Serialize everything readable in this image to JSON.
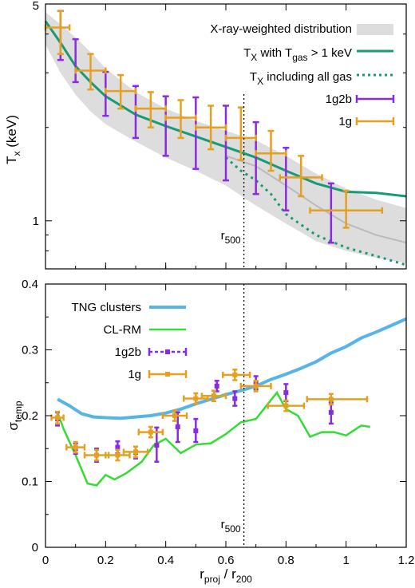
{
  "chart_data": [
    {
      "type": "line",
      "panel": "top",
      "ylabel_main": "T",
      "ylabel_sub": "x",
      "ylabel_unit": "(keV)",
      "yscale": "log",
      "xlim": [
        0,
        1.2
      ],
      "ylim": [
        0.7,
        5
      ],
      "y_tick_labels": [
        {
          "value": 1,
          "label": "1"
        },
        {
          "value": 5,
          "label": "5"
        }
      ],
      "r500": 0.66,
      "r500_label_main": "r",
      "r500_label_sub": "500",
      "legend": {
        "band": "X-ray-weighted distribution",
        "hot_main": "T",
        "hot_sub1": "X",
        "hot_mid": " with T",
        "hot_sub2": "gas",
        "hot_end": " > 1 keV",
        "all_main": "T",
        "all_sub": "X",
        "all_end": " including all gas",
        "s1g2b": "1g2b",
        "s1g": "1g"
      },
      "band": {
        "x": [
          0.0,
          0.05,
          0.1,
          0.15,
          0.2,
          0.3,
          0.4,
          0.5,
          0.6,
          0.7,
          0.8,
          0.9,
          1.0,
          1.1,
          1.2
        ],
        "lower": [
          3.7,
          3.0,
          2.55,
          2.25,
          2.05,
          1.8,
          1.6,
          1.45,
          1.3,
          1.12,
          0.98,
          0.86,
          0.8,
          0.76,
          0.73
        ],
        "upper": [
          4.7,
          4.3,
          3.9,
          3.5,
          3.1,
          2.6,
          2.3,
          2.1,
          1.95,
          1.82,
          1.62,
          1.42,
          1.27,
          1.17,
          1.1
        ]
      },
      "series": [
        {
          "name": "hot",
          "color": "#1a9a74",
          "style": "solid",
          "x": [
            0.0,
            0.05,
            0.1,
            0.15,
            0.2,
            0.3,
            0.4,
            0.5,
            0.6,
            0.7,
            0.8,
            0.9,
            1.0,
            1.1,
            1.2
          ],
          "y": [
            4.4,
            3.75,
            3.15,
            2.8,
            2.52,
            2.2,
            2.02,
            1.87,
            1.73,
            1.6,
            1.45,
            1.32,
            1.24,
            1.23,
            1.2
          ]
        },
        {
          "name": "all",
          "color": "#1a9a74",
          "style": "dotted",
          "x": [
            0.6,
            0.65,
            0.7,
            0.75,
            0.8,
            0.9,
            1.0,
            1.1,
            1.2
          ],
          "y": [
            1.6,
            1.45,
            1.35,
            1.22,
            1.05,
            0.9,
            0.82,
            0.77,
            0.72
          ]
        },
        {
          "name": "median",
          "color": "#bbbbbb",
          "style": "solid",
          "x": [
            0.6,
            0.7,
            0.8,
            0.9,
            1.0,
            1.1,
            1.2
          ],
          "y": [
            1.62,
            1.5,
            1.3,
            1.12,
            0.98,
            0.9,
            0.85
          ]
        }
      ],
      "points_1g2b": [
        {
          "x": 0.05,
          "y": 4.1,
          "ylo": 3.3,
          "yhi": 4.75
        },
        {
          "x": 0.1,
          "y": 3.3,
          "ylo": 2.8,
          "yhi": 3.85
        },
        {
          "x": 0.2,
          "y": 2.6,
          "ylo": 2.18,
          "yhi": 3.02
        },
        {
          "x": 0.3,
          "y": 2.3,
          "ylo": 1.85,
          "yhi": 2.72
        },
        {
          "x": 0.4,
          "y": 2.2,
          "ylo": 1.62,
          "yhi": 2.52
        },
        {
          "x": 0.5,
          "y": 1.95,
          "ylo": 1.47,
          "yhi": 2.5
        },
        {
          "x": 0.6,
          "y": 1.75,
          "ylo": 1.35,
          "yhi": 2.35
        },
        {
          "x": 0.7,
          "y": 1.55,
          "ylo": 1.22,
          "yhi": 2.08
        },
        {
          "x": 0.8,
          "y": 1.35,
          "ylo": 1.08,
          "yhi": 1.72
        },
        {
          "x": 0.95,
          "y": 1.05,
          "ylo": 0.85,
          "yhi": 1.32
        }
      ],
      "points_1g": [
        {
          "x": 0.05,
          "y": 4.2,
          "ylo": 3.45,
          "yhi": 4.75,
          "xlo": 0.0,
          "xhi": 0.08
        },
        {
          "x": 0.15,
          "y": 3.05,
          "ylo": 2.65,
          "yhi": 3.45,
          "xlo": 0.1,
          "xhi": 0.2
        },
        {
          "x": 0.25,
          "y": 2.62,
          "ylo": 2.3,
          "yhi": 2.95,
          "xlo": 0.2,
          "xhi": 0.3
        },
        {
          "x": 0.35,
          "y": 2.3,
          "ylo": 2.0,
          "yhi": 2.6,
          "xlo": 0.3,
          "xhi": 0.4
        },
        {
          "x": 0.45,
          "y": 2.15,
          "ylo": 1.85,
          "yhi": 2.45,
          "xlo": 0.4,
          "xhi": 0.5
        },
        {
          "x": 0.55,
          "y": 2.0,
          "ylo": 1.7,
          "yhi": 2.35,
          "xlo": 0.5,
          "xhi": 0.6
        },
        {
          "x": 0.65,
          "y": 1.85,
          "ylo": 1.57,
          "yhi": 2.32,
          "xlo": 0.6,
          "xhi": 0.7
        },
        {
          "x": 0.75,
          "y": 1.65,
          "ylo": 1.45,
          "yhi": 1.95,
          "xlo": 0.7,
          "xhi": 0.8
        },
        {
          "x": 0.85,
          "y": 1.38,
          "ylo": 1.2,
          "yhi": 1.62,
          "xlo": 0.78,
          "xhi": 0.92
        },
        {
          "x": 1.0,
          "y": 1.08,
          "ylo": 0.95,
          "yhi": 1.25,
          "xlo": 0.88,
          "xhi": 1.12
        }
      ]
    },
    {
      "type": "line",
      "panel": "bottom",
      "ylabel_main": "σ",
      "ylabel_sub": "temp",
      "xlabel_a": "r",
      "xlabel_a_sub": "proj",
      "xlabel_mid": " / r",
      "xlabel_b_sub": "200",
      "xlim": [
        0,
        1.2
      ],
      "ylim": [
        0,
        0.4
      ],
      "x_ticks": [
        0,
        0.2,
        0.4,
        0.6,
        0.8,
        1,
        1.2
      ],
      "x_tick_labels": [
        "0",
        "0.2",
        "0.4",
        "0.6",
        "0.8",
        "1",
        "1.2"
      ],
      "y_ticks": [
        0,
        0.1,
        0.2,
        0.3,
        0.4
      ],
      "y_tick_labels": [
        "0",
        "0.1",
        "0.2",
        "0.3",
        "0.4"
      ],
      "r500": 0.66,
      "r500_label_main": "r",
      "r500_label_sub": "500",
      "legend": {
        "tng": "TNG clusters",
        "clrm": "CL-RM",
        "s1g2b": "1g2b",
        "s1g": "1g"
      },
      "series": [
        {
          "name": "TNG clusters",
          "color": "#56b4e9",
          "x": [
            0.04,
            0.08,
            0.12,
            0.16,
            0.2,
            0.25,
            0.3,
            0.35,
            0.4,
            0.45,
            0.5,
            0.55,
            0.6,
            0.65,
            0.7,
            0.75,
            0.8,
            0.85,
            0.9,
            0.95,
            1.0,
            1.05,
            1.1,
            1.15,
            1.2
          ],
          "y": [
            0.225,
            0.215,
            0.203,
            0.198,
            0.197,
            0.196,
            0.198,
            0.2,
            0.204,
            0.21,
            0.218,
            0.225,
            0.232,
            0.238,
            0.245,
            0.255,
            0.263,
            0.272,
            0.282,
            0.295,
            0.305,
            0.318,
            0.327,
            0.337,
            0.347
          ]
        },
        {
          "name": "CL-RM",
          "color": "#33dd33",
          "x": [
            0.04,
            0.06,
            0.1,
            0.14,
            0.17,
            0.2,
            0.23,
            0.27,
            0.32,
            0.36,
            0.4,
            0.45,
            0.5,
            0.55,
            0.6,
            0.65,
            0.7,
            0.74,
            0.77,
            0.8,
            0.84,
            0.88,
            0.92,
            0.96,
            1.0,
            1.05,
            1.08
          ],
          "y": [
            0.205,
            0.18,
            0.14,
            0.097,
            0.094,
            0.11,
            0.103,
            0.113,
            0.13,
            0.155,
            0.165,
            0.143,
            0.156,
            0.158,
            0.172,
            0.19,
            0.195,
            0.218,
            0.235,
            0.21,
            0.2,
            0.168,
            0.175,
            0.175,
            0.17,
            0.185,
            0.183
          ]
        }
      ],
      "points_1g2b": [
        {
          "x": 0.04,
          "y": 0.195,
          "ylo": 0.185,
          "yhi": 0.205
        },
        {
          "x": 0.1,
          "y": 0.15,
          "ylo": 0.142,
          "yhi": 0.158
        },
        {
          "x": 0.17,
          "y": 0.14,
          "ylo": 0.13,
          "yhi": 0.15
        },
        {
          "x": 0.24,
          "y": 0.152,
          "ylo": 0.143,
          "yhi": 0.161
        },
        {
          "x": 0.3,
          "y": 0.144,
          "ylo": 0.135,
          "yhi": 0.153
        },
        {
          "x": 0.37,
          "y": 0.155,
          "ylo": 0.13,
          "yhi": 0.182
        },
        {
          "x": 0.44,
          "y": 0.183,
          "ylo": 0.16,
          "yhi": 0.205
        },
        {
          "x": 0.5,
          "y": 0.177,
          "ylo": 0.16,
          "yhi": 0.195
        },
        {
          "x": 0.57,
          "y": 0.245,
          "ylo": 0.237,
          "yhi": 0.253
        },
        {
          "x": 0.63,
          "y": 0.226,
          "ylo": 0.215,
          "yhi": 0.237
        },
        {
          "x": 0.7,
          "y": 0.25,
          "ylo": 0.24,
          "yhi": 0.26
        },
        {
          "x": 0.8,
          "y": 0.235,
          "ylo": 0.222,
          "yhi": 0.248
        },
        {
          "x": 0.95,
          "y": 0.205,
          "ylo": 0.188,
          "yhi": 0.22
        }
      ],
      "points_1g": [
        {
          "x": 0.04,
          "y": 0.197,
          "ylo": 0.188,
          "yhi": 0.206,
          "xlo": 0.02,
          "xhi": 0.06
        },
        {
          "x": 0.1,
          "y": 0.152,
          "ylo": 0.144,
          "yhi": 0.16,
          "xlo": 0.07,
          "xhi": 0.13
        },
        {
          "x": 0.17,
          "y": 0.14,
          "ylo": 0.132,
          "yhi": 0.148,
          "xlo": 0.13,
          "xhi": 0.21
        },
        {
          "x": 0.24,
          "y": 0.14,
          "ylo": 0.132,
          "yhi": 0.148,
          "xlo": 0.2,
          "xhi": 0.28
        },
        {
          "x": 0.3,
          "y": 0.145,
          "ylo": 0.137,
          "yhi": 0.153,
          "xlo": 0.26,
          "xhi": 0.34
        },
        {
          "x": 0.35,
          "y": 0.175,
          "ylo": 0.167,
          "yhi": 0.183,
          "xlo": 0.31,
          "xhi": 0.39
        },
        {
          "x": 0.43,
          "y": 0.2,
          "ylo": 0.192,
          "yhi": 0.208,
          "xlo": 0.39,
          "xhi": 0.47
        },
        {
          "x": 0.5,
          "y": 0.226,
          "ylo": 0.218,
          "yhi": 0.234,
          "xlo": 0.46,
          "xhi": 0.54
        },
        {
          "x": 0.56,
          "y": 0.23,
          "ylo": 0.222,
          "yhi": 0.238,
          "xlo": 0.52,
          "xhi": 0.6
        },
        {
          "x": 0.63,
          "y": 0.262,
          "ylo": 0.254,
          "yhi": 0.27,
          "xlo": 0.59,
          "xhi": 0.68
        },
        {
          "x": 0.7,
          "y": 0.245,
          "ylo": 0.237,
          "yhi": 0.253,
          "xlo": 0.65,
          "xhi": 0.75
        },
        {
          "x": 0.8,
          "y": 0.215,
          "ylo": 0.207,
          "yhi": 0.223,
          "xlo": 0.74,
          "xhi": 0.86
        },
        {
          "x": 0.95,
          "y": 0.225,
          "ylo": 0.217,
          "yhi": 0.233,
          "xlo": 0.87,
          "xhi": 1.07
        }
      ]
    }
  ],
  "colors": {
    "purple": "#8a2be2",
    "orange": "#e6a020",
    "green": "#1a9a74",
    "blue": "#56b4e9",
    "lime": "#33dd33",
    "band": "#dddddd"
  }
}
